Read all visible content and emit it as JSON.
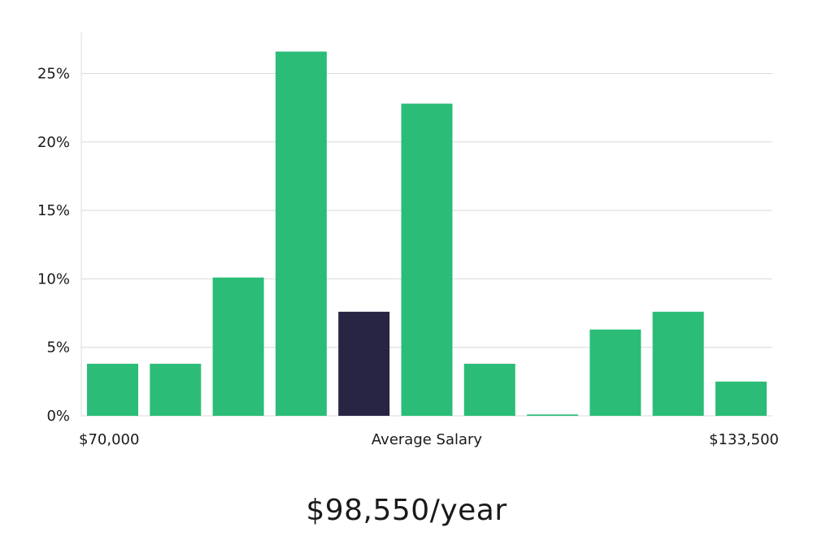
{
  "chart_data": {
    "type": "bar",
    "title": "",
    "xlabel": "Average Salary",
    "ylabel": "",
    "x_min_label": "$70,000",
    "x_max_label": "$133,500",
    "ylim": [
      0,
      28
    ],
    "yticks": [
      0,
      5,
      10,
      15,
      20,
      25
    ],
    "ytick_labels": [
      "0%",
      "5%",
      "10%",
      "15%",
      "20%",
      "25%"
    ],
    "values": [
      3.8,
      3.8,
      10.1,
      26.6,
      7.6,
      22.8,
      3.8,
      0.1,
      6.3,
      7.6,
      2.5
    ],
    "highlight_index": 4,
    "grid": true
  },
  "colors": {
    "bar": "#2bbd77",
    "highlight": "#272444",
    "grid": "#d9d9d9",
    "axis": "#dddddd"
  },
  "summary": {
    "salary": "$98,550/year"
  }
}
